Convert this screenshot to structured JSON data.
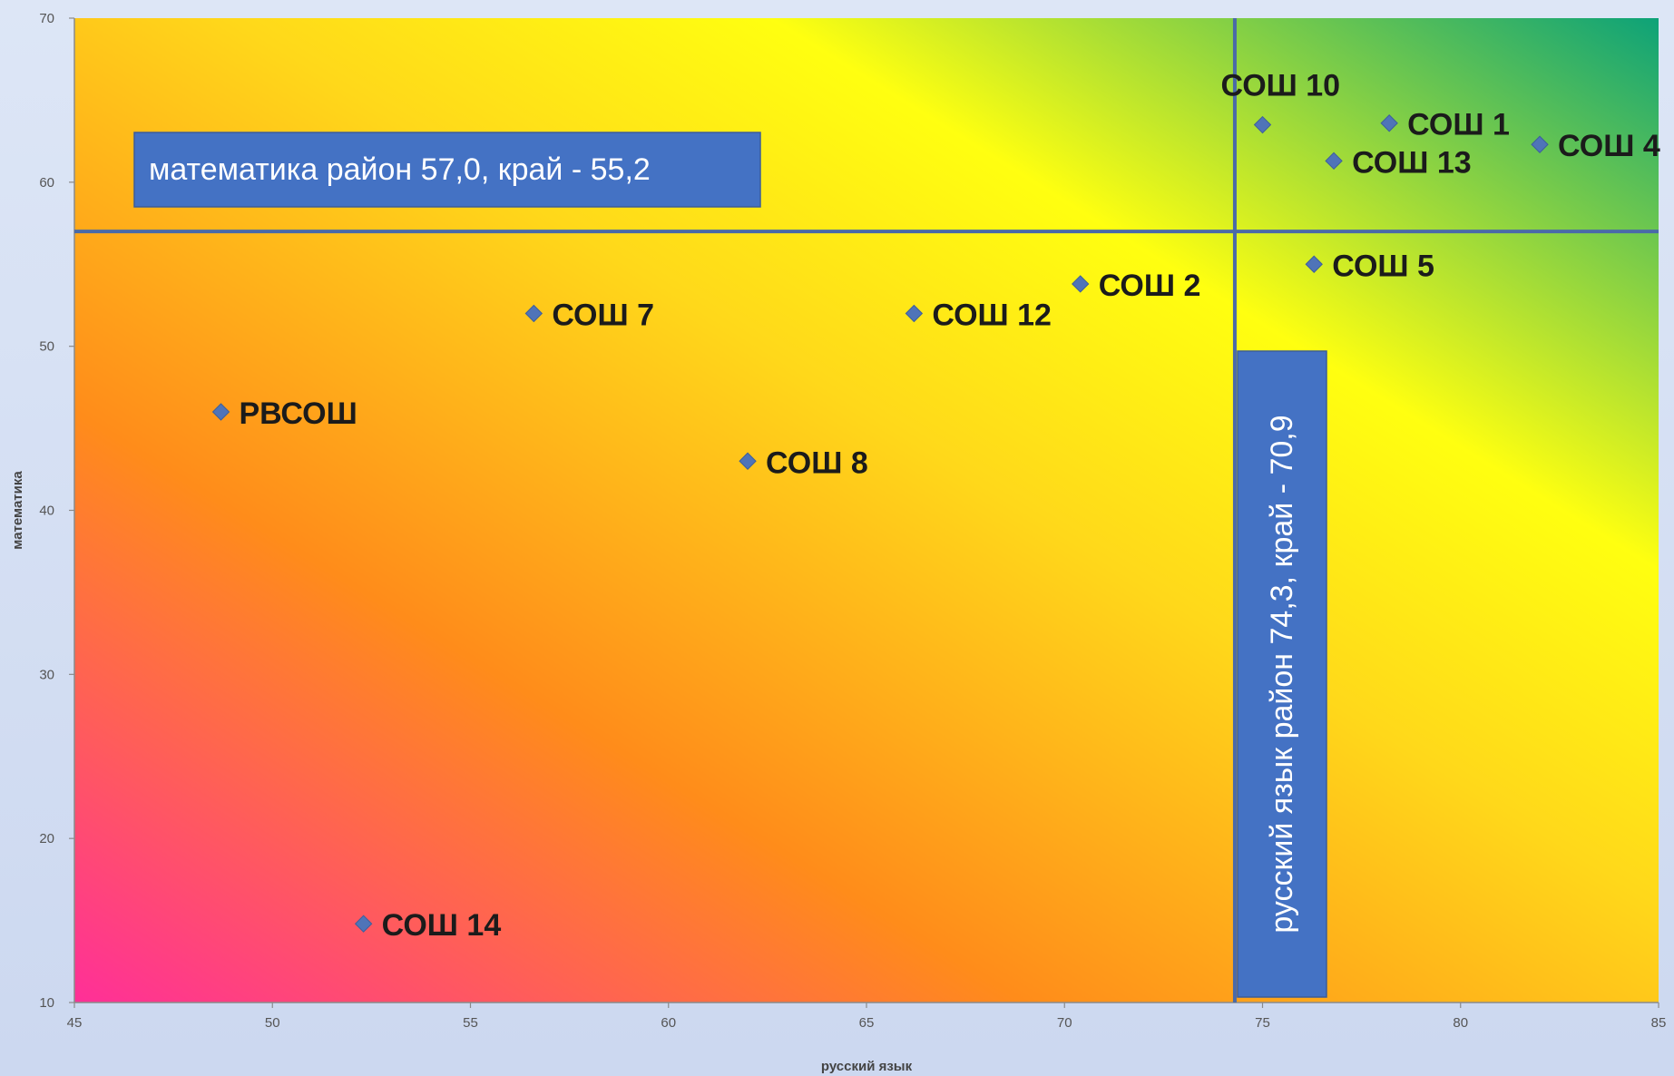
{
  "chart_data": {
    "type": "scatter",
    "xlabel": "русский язык",
    "ylabel": "математика",
    "xlim": [
      45,
      85
    ],
    "ylim": [
      10,
      70
    ],
    "x_ticks": [
      "45",
      "50",
      "55",
      "60",
      "65",
      "70",
      "75",
      "80",
      "85"
    ],
    "y_ticks": [
      "10",
      "20",
      "30",
      "40",
      "50",
      "60",
      "70"
    ],
    "grid": false,
    "legend": "none",
    "marker_color": "#4f74b8",
    "points": [
      {
        "label": "СОШ 10",
        "x": 75.0,
        "y": 63.5
      },
      {
        "label": "СОШ 1",
        "x": 78.2,
        "y": 63.6
      },
      {
        "label": "СОШ 4",
        "x": 82.0,
        "y": 62.3
      },
      {
        "label": "СОШ 13",
        "x": 76.8,
        "y": 61.3
      },
      {
        "label": "СОШ 5",
        "x": 76.3,
        "y": 55.0
      },
      {
        "label": "СОШ 2",
        "x": 70.4,
        "y": 53.8
      },
      {
        "label": "СОШ 7",
        "x": 56.6,
        "y": 52.0
      },
      {
        "label": "СОШ 12",
        "x": 66.2,
        "y": 52.0
      },
      {
        "label": "РВСОШ",
        "x": 48.7,
        "y": 46.0
      },
      {
        "label": "СОШ 8",
        "x": 62.0,
        "y": 43.0
      },
      {
        "label": "СОШ 14",
        "x": 52.3,
        "y": 14.8
      }
    ],
    "reference_lines": [
      {
        "axis": "y",
        "value": 57.0,
        "label": "математика район 57,0, край - 55,2"
      },
      {
        "axis": "x",
        "value": 74.3,
        "label": "русский язык район 74,3, край - 70,9"
      }
    ],
    "colors": {
      "reference_line": "#4a6aa8",
      "callout_fill": "#4472c4",
      "gradient_low": "#ff2f98",
      "gradient_mid1": "#ff8c1a",
      "gradient_mid2": "#ffd81a",
      "gradient_mid3": "#ffff10",
      "gradient_high": "#0da278"
    }
  }
}
